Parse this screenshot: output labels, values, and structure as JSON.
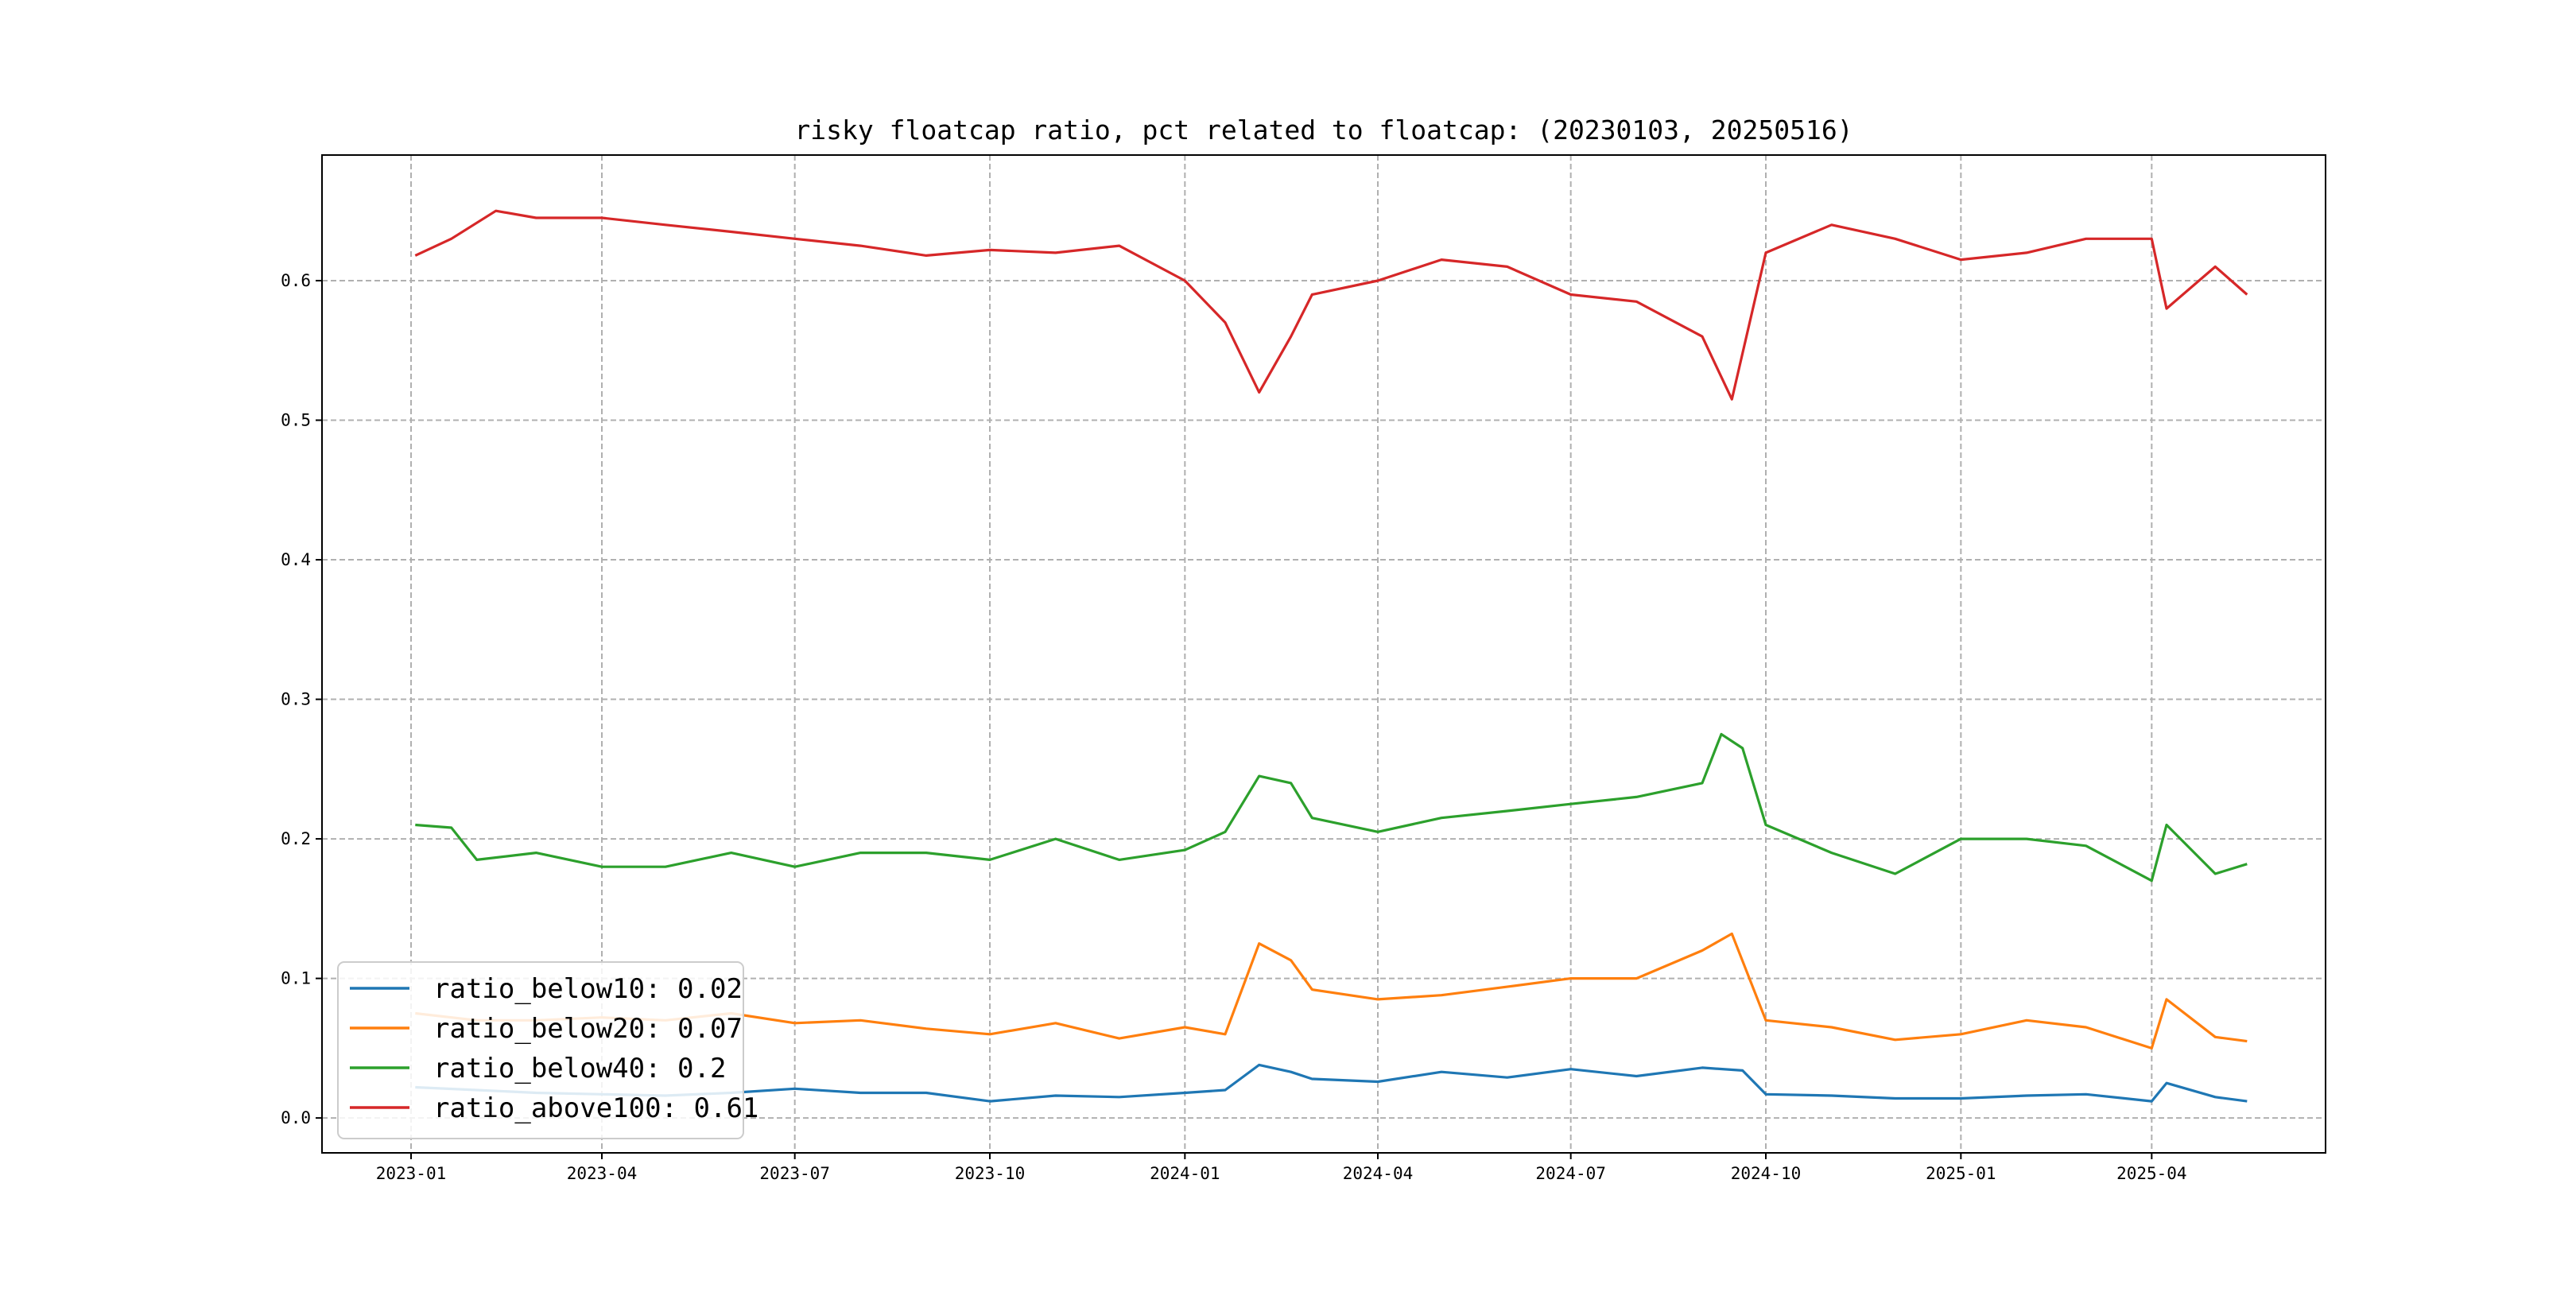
{
  "chart_data": {
    "type": "line",
    "title": "risky floatcap ratio, pct related to floatcap: (20230103, 20250516)",
    "xlabel": "",
    "ylabel": "",
    "x_range": [
      "2023-01-03",
      "2025-05-16"
    ],
    "xlim": [
      "2022-11-20",
      "2025-06-22"
    ],
    "ylim": [
      -0.025,
      0.69
    ],
    "x_ticks": [
      "2023-01",
      "2023-04",
      "2023-07",
      "2023-10",
      "2024-01",
      "2024-04",
      "2024-07",
      "2024-10",
      "2025-01",
      "2025-04"
    ],
    "y_ticks": [
      "0.0",
      "0.1",
      "0.2",
      "0.3",
      "0.4",
      "0.5",
      "0.6"
    ],
    "grid": true,
    "legend_position": "lower-left",
    "series": [
      {
        "name": "ratio_below10",
        "legend_label": "ratio_below10: 0.02",
        "color": "#1f77b4",
        "points": [
          [
            "2023-01-03",
            0.022
          ],
          [
            "2023-02-01",
            0.02
          ],
          [
            "2023-03-01",
            0.018
          ],
          [
            "2023-04-01",
            0.017
          ],
          [
            "2023-05-01",
            0.016
          ],
          [
            "2023-06-01",
            0.018
          ],
          [
            "2023-07-01",
            0.021
          ],
          [
            "2023-08-01",
            0.018
          ],
          [
            "2023-09-01",
            0.018
          ],
          [
            "2023-10-01",
            0.012
          ],
          [
            "2023-11-01",
            0.016
          ],
          [
            "2023-12-01",
            0.015
          ],
          [
            "2024-01-01",
            0.018
          ],
          [
            "2024-01-20",
            0.02
          ],
          [
            "2024-02-05",
            0.038
          ],
          [
            "2024-02-20",
            0.033
          ],
          [
            "2024-03-01",
            0.028
          ],
          [
            "2024-04-01",
            0.026
          ],
          [
            "2024-05-01",
            0.033
          ],
          [
            "2024-06-01",
            0.029
          ],
          [
            "2024-07-01",
            0.035
          ],
          [
            "2024-08-01",
            0.03
          ],
          [
            "2024-09-01",
            0.036
          ],
          [
            "2024-09-20",
            0.034
          ],
          [
            "2024-10-01",
            0.017
          ],
          [
            "2024-11-01",
            0.016
          ],
          [
            "2024-12-01",
            0.014
          ],
          [
            "2025-01-01",
            0.014
          ],
          [
            "2025-02-01",
            0.016
          ],
          [
            "2025-03-01",
            0.017
          ],
          [
            "2025-04-01",
            0.012
          ],
          [
            "2025-04-08",
            0.025
          ],
          [
            "2025-05-01",
            0.015
          ],
          [
            "2025-05-16",
            0.012
          ]
        ]
      },
      {
        "name": "ratio_below20",
        "legend_label": "ratio_below20: 0.07",
        "color": "#ff7f0e",
        "points": [
          [
            "2023-01-03",
            0.075
          ],
          [
            "2023-02-01",
            0.07
          ],
          [
            "2023-03-01",
            0.07
          ],
          [
            "2023-04-01",
            0.072
          ],
          [
            "2023-05-01",
            0.07
          ],
          [
            "2023-06-01",
            0.075
          ],
          [
            "2023-07-01",
            0.068
          ],
          [
            "2023-08-01",
            0.07
          ],
          [
            "2023-09-01",
            0.064
          ],
          [
            "2023-10-01",
            0.06
          ],
          [
            "2023-11-01",
            0.068
          ],
          [
            "2023-12-01",
            0.057
          ],
          [
            "2024-01-01",
            0.065
          ],
          [
            "2024-01-20",
            0.06
          ],
          [
            "2024-02-05",
            0.125
          ],
          [
            "2024-02-20",
            0.113
          ],
          [
            "2024-03-01",
            0.092
          ],
          [
            "2024-04-01",
            0.085
          ],
          [
            "2024-05-01",
            0.088
          ],
          [
            "2024-06-01",
            0.094
          ],
          [
            "2024-07-01",
            0.1
          ],
          [
            "2024-08-01",
            0.1
          ],
          [
            "2024-09-01",
            0.12
          ],
          [
            "2024-09-15",
            0.132
          ],
          [
            "2024-10-01",
            0.07
          ],
          [
            "2024-11-01",
            0.065
          ],
          [
            "2024-12-01",
            0.056
          ],
          [
            "2025-01-01",
            0.06
          ],
          [
            "2025-02-01",
            0.07
          ],
          [
            "2025-03-01",
            0.065
          ],
          [
            "2025-04-01",
            0.05
          ],
          [
            "2025-04-08",
            0.085
          ],
          [
            "2025-05-01",
            0.058
          ],
          [
            "2025-05-16",
            0.055
          ]
        ]
      },
      {
        "name": "ratio_below40",
        "legend_label": "ratio_below40: 0.2",
        "color": "#2ca02c",
        "points": [
          [
            "2023-01-03",
            0.21
          ],
          [
            "2023-01-20",
            0.208
          ],
          [
            "2023-02-01",
            0.185
          ],
          [
            "2023-03-01",
            0.19
          ],
          [
            "2023-04-01",
            0.18
          ],
          [
            "2023-05-01",
            0.18
          ],
          [
            "2023-06-01",
            0.19
          ],
          [
            "2023-07-01",
            0.18
          ],
          [
            "2023-08-01",
            0.19
          ],
          [
            "2023-09-01",
            0.19
          ],
          [
            "2023-10-01",
            0.185
          ],
          [
            "2023-11-01",
            0.2
          ],
          [
            "2023-12-01",
            0.185
          ],
          [
            "2024-01-01",
            0.192
          ],
          [
            "2024-01-20",
            0.205
          ],
          [
            "2024-02-05",
            0.245
          ],
          [
            "2024-02-20",
            0.24
          ],
          [
            "2024-03-01",
            0.215
          ],
          [
            "2024-04-01",
            0.205
          ],
          [
            "2024-05-01",
            0.215
          ],
          [
            "2024-06-01",
            0.22
          ],
          [
            "2024-07-01",
            0.225
          ],
          [
            "2024-08-01",
            0.23
          ],
          [
            "2024-09-01",
            0.24
          ],
          [
            "2024-09-10",
            0.275
          ],
          [
            "2024-09-20",
            0.265
          ],
          [
            "2024-10-01",
            0.21
          ],
          [
            "2024-11-01",
            0.19
          ],
          [
            "2024-12-01",
            0.175
          ],
          [
            "2025-01-01",
            0.2
          ],
          [
            "2025-02-01",
            0.2
          ],
          [
            "2025-03-01",
            0.195
          ],
          [
            "2025-04-01",
            0.17
          ],
          [
            "2025-04-08",
            0.21
          ],
          [
            "2025-05-01",
            0.175
          ],
          [
            "2025-05-16",
            0.182
          ]
        ]
      },
      {
        "name": "ratio_above100",
        "legend_label": "ratio_above100: 0.61",
        "color": "#d62728",
        "points": [
          [
            "2023-01-03",
            0.618
          ],
          [
            "2023-01-20",
            0.63
          ],
          [
            "2023-02-10",
            0.65
          ],
          [
            "2023-03-01",
            0.645
          ],
          [
            "2023-04-01",
            0.645
          ],
          [
            "2023-05-01",
            0.64
          ],
          [
            "2023-06-01",
            0.635
          ],
          [
            "2023-07-01",
            0.63
          ],
          [
            "2023-08-01",
            0.625
          ],
          [
            "2023-09-01",
            0.618
          ],
          [
            "2023-10-01",
            0.622
          ],
          [
            "2023-11-01",
            0.62
          ],
          [
            "2023-12-01",
            0.625
          ],
          [
            "2024-01-01",
            0.6
          ],
          [
            "2024-01-20",
            0.57
          ],
          [
            "2024-02-05",
            0.52
          ],
          [
            "2024-02-20",
            0.56
          ],
          [
            "2024-03-01",
            0.59
          ],
          [
            "2024-04-01",
            0.6
          ],
          [
            "2024-05-01",
            0.615
          ],
          [
            "2024-06-01",
            0.61
          ],
          [
            "2024-07-01",
            0.59
          ],
          [
            "2024-08-01",
            0.585
          ],
          [
            "2024-09-01",
            0.56
          ],
          [
            "2024-09-15",
            0.515
          ],
          [
            "2024-10-01",
            0.62
          ],
          [
            "2024-11-01",
            0.64
          ],
          [
            "2024-12-01",
            0.63
          ],
          [
            "2025-01-01",
            0.615
          ],
          [
            "2025-02-01",
            0.62
          ],
          [
            "2025-03-01",
            0.63
          ],
          [
            "2025-04-01",
            0.63
          ],
          [
            "2025-04-08",
            0.58
          ],
          [
            "2025-05-01",
            0.61
          ],
          [
            "2025-05-16",
            0.59
          ]
        ]
      }
    ]
  }
}
